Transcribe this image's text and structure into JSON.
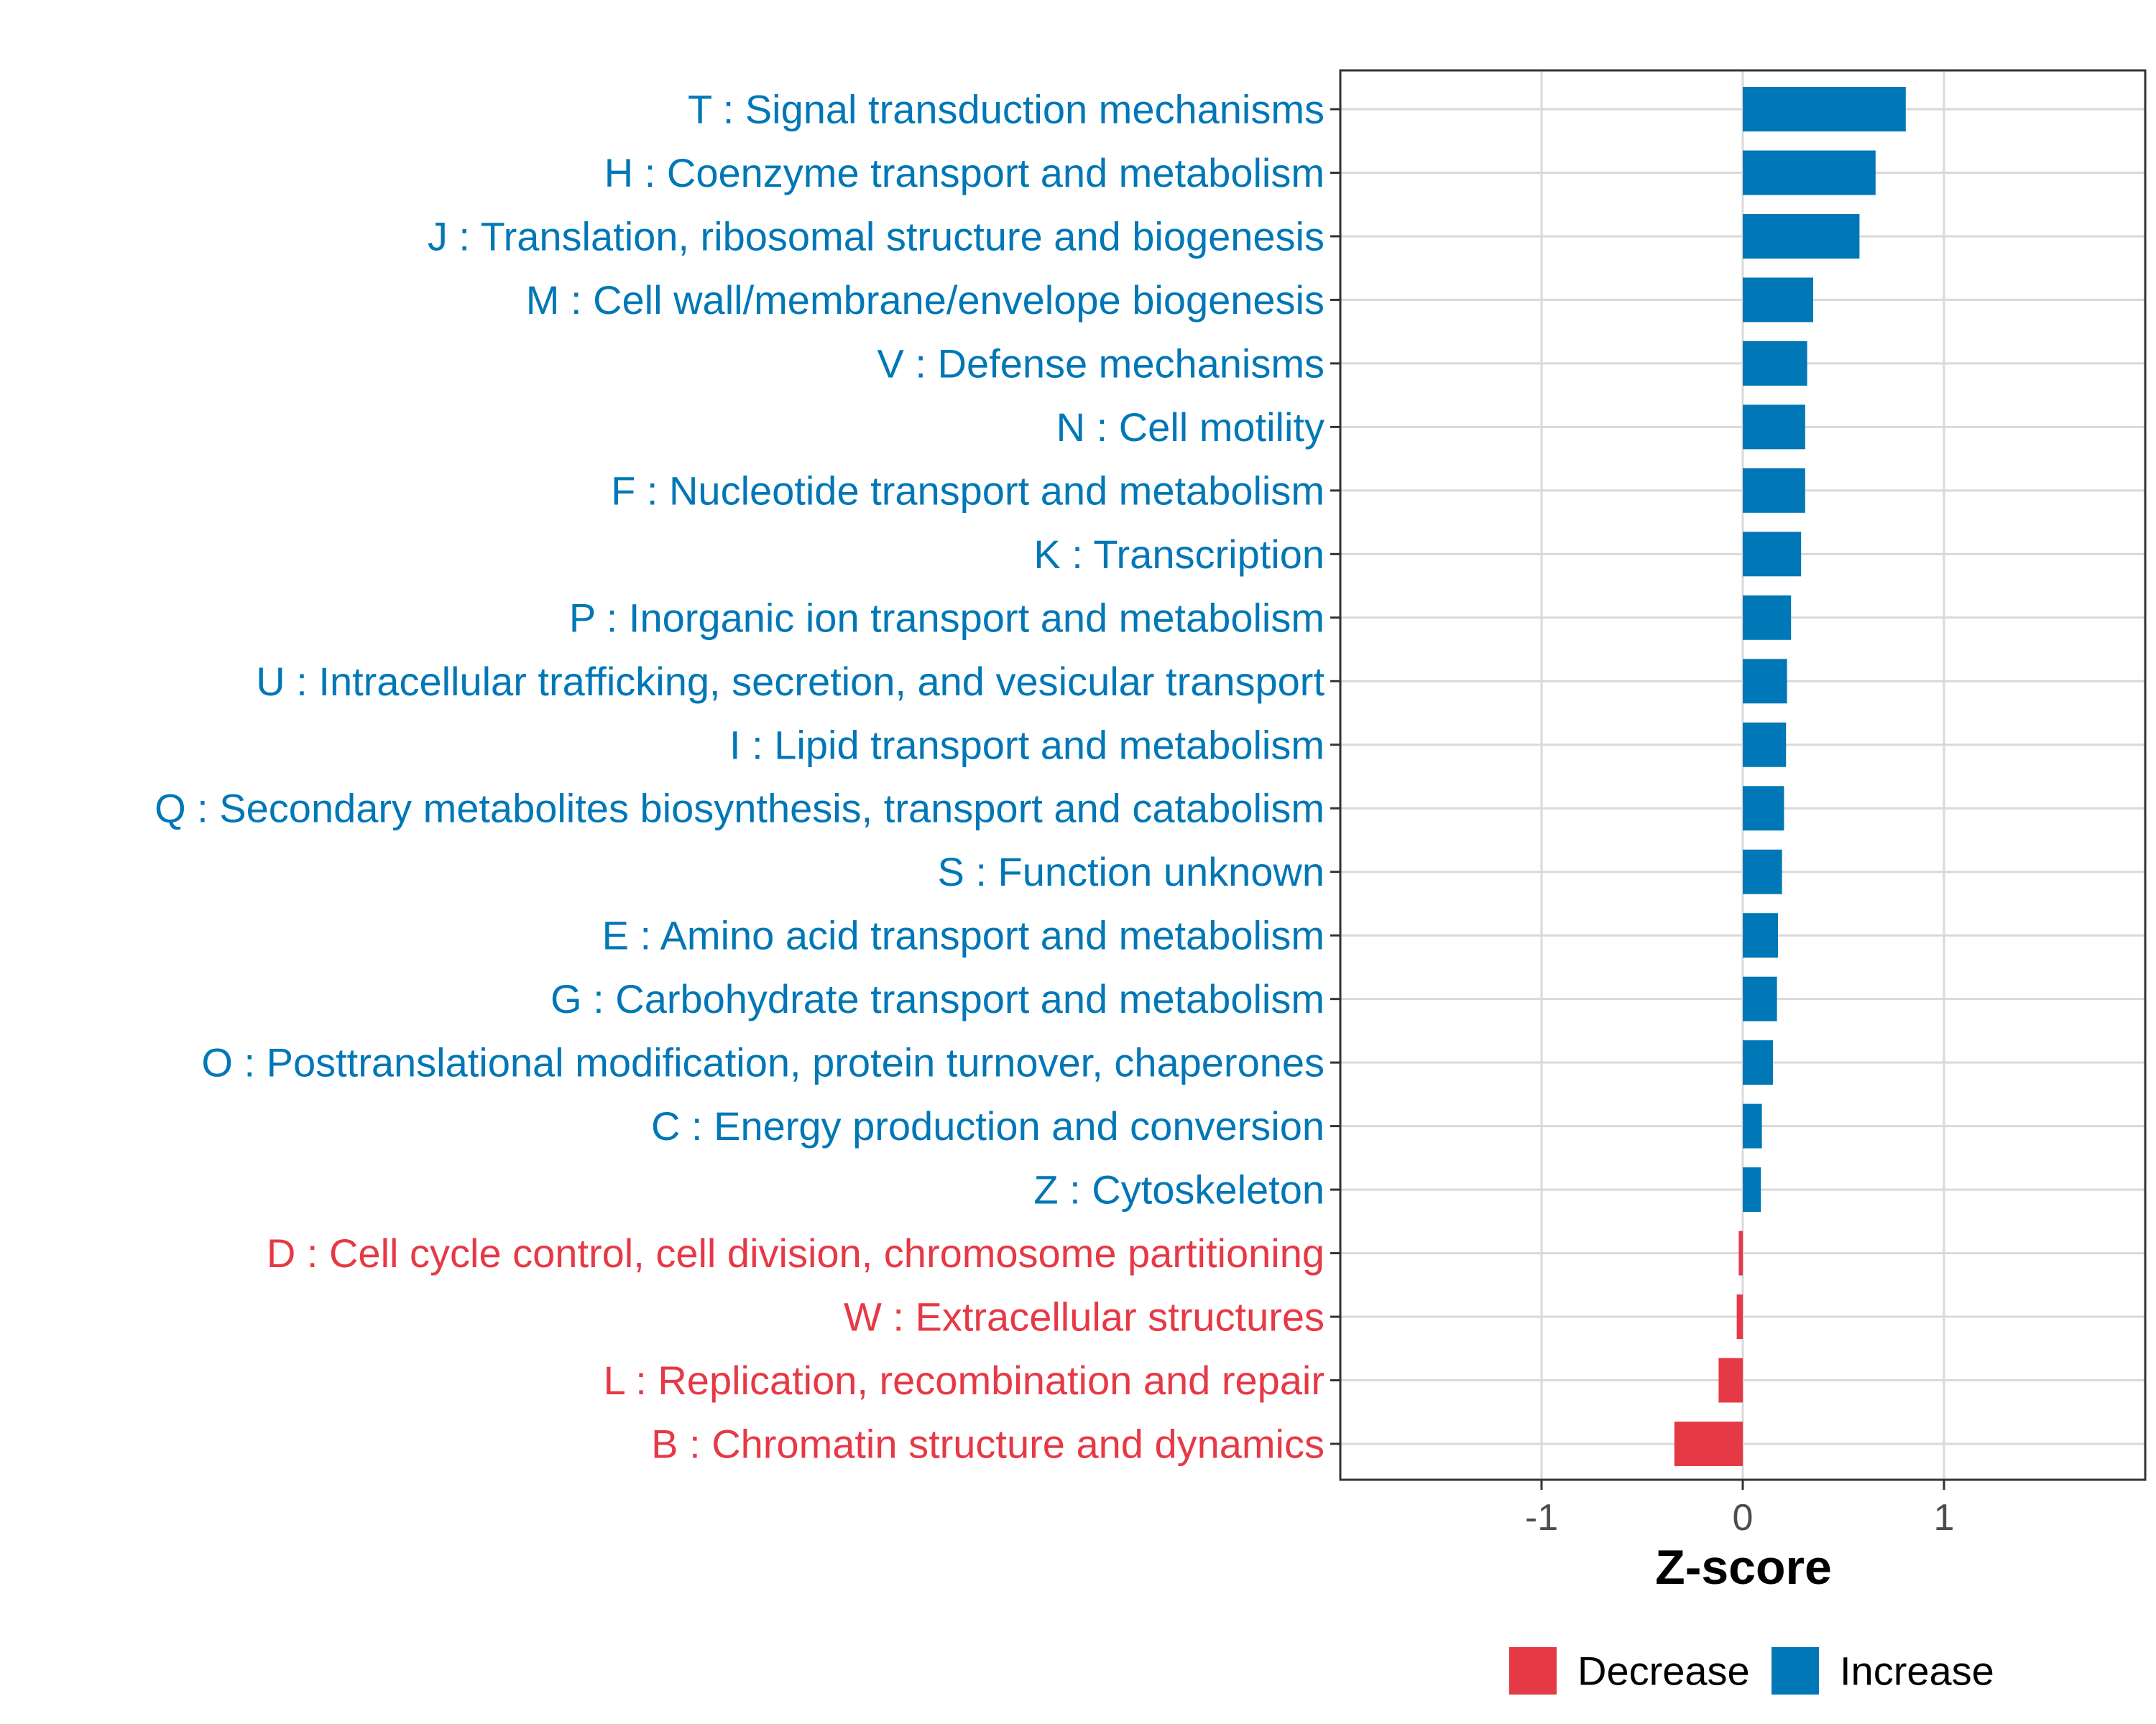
{
  "chart_data": {
    "type": "bar",
    "orientation": "horizontal",
    "title": "",
    "xlabel": "Z-score",
    "ylabel": "",
    "xlim": [
      -2,
      2
    ],
    "x_ticks": [
      -1,
      0,
      1
    ],
    "x_tick_labels": [
      "-1",
      "0",
      "1"
    ],
    "grid": true,
    "colors": {
      "Decrease": "#E63946",
      "Increase": "#0077B6"
    },
    "legend": {
      "position": "bottom",
      "entries": [
        {
          "label": "Decrease",
          "color": "#E63946"
        },
        {
          "label": "Increase",
          "color": "#0077B6"
        }
      ]
    },
    "bars": [
      {
        "label": "T : Signal transduction mechanisms",
        "value": 0.81,
        "group": "Increase"
      },
      {
        "label": "H : Coenzyme transport and metabolism",
        "value": 0.66,
        "group": "Increase"
      },
      {
        "label": "J : Translation, ribosomal structure and biogenesis",
        "value": 0.58,
        "group": "Increase"
      },
      {
        "label": "M : Cell wall/membrane/envelope biogenesis",
        "value": 0.35,
        "group": "Increase"
      },
      {
        "label": "V : Defense mechanisms",
        "value": 0.32,
        "group": "Increase"
      },
      {
        "label": "N : Cell motility",
        "value": 0.31,
        "group": "Increase"
      },
      {
        "label": "F : Nucleotide transport and metabolism",
        "value": 0.31,
        "group": "Increase"
      },
      {
        "label": "K : Transcription",
        "value": 0.29,
        "group": "Increase"
      },
      {
        "label": "P : Inorganic ion transport and metabolism",
        "value": 0.24,
        "group": "Increase"
      },
      {
        "label": "U : Intracellular trafficking, secretion, and vesicular transport",
        "value": 0.22,
        "group": "Increase"
      },
      {
        "label": "I : Lipid transport and metabolism",
        "value": 0.215,
        "group": "Increase"
      },
      {
        "label": "Q : Secondary metabolites biosynthesis, transport and catabolism",
        "value": 0.205,
        "group": "Increase"
      },
      {
        "label": "S : Function unknown",
        "value": 0.195,
        "group": "Increase"
      },
      {
        "label": "E : Amino acid transport and metabolism",
        "value": 0.175,
        "group": "Increase"
      },
      {
        "label": "G : Carbohydrate transport and metabolism",
        "value": 0.17,
        "group": "Increase"
      },
      {
        "label": "O : Posttranslational modification, protein turnover, chaperones",
        "value": 0.15,
        "group": "Increase"
      },
      {
        "label": "C : Energy production and conversion",
        "value": 0.095,
        "group": "Increase"
      },
      {
        "label": "Z : Cytoskeleton",
        "value": 0.09,
        "group": "Increase"
      },
      {
        "label": "D : Cell cycle control, cell division, chromosome partitioning",
        "value": -0.02,
        "group": "Decrease"
      },
      {
        "label": "W : Extracellular structures",
        "value": -0.03,
        "group": "Decrease"
      },
      {
        "label": "L : Replication, recombination and repair",
        "value": -0.12,
        "group": "Decrease"
      },
      {
        "label": "B : Chromatin structure and dynamics",
        "value": -0.34,
        "group": "Decrease"
      }
    ]
  }
}
